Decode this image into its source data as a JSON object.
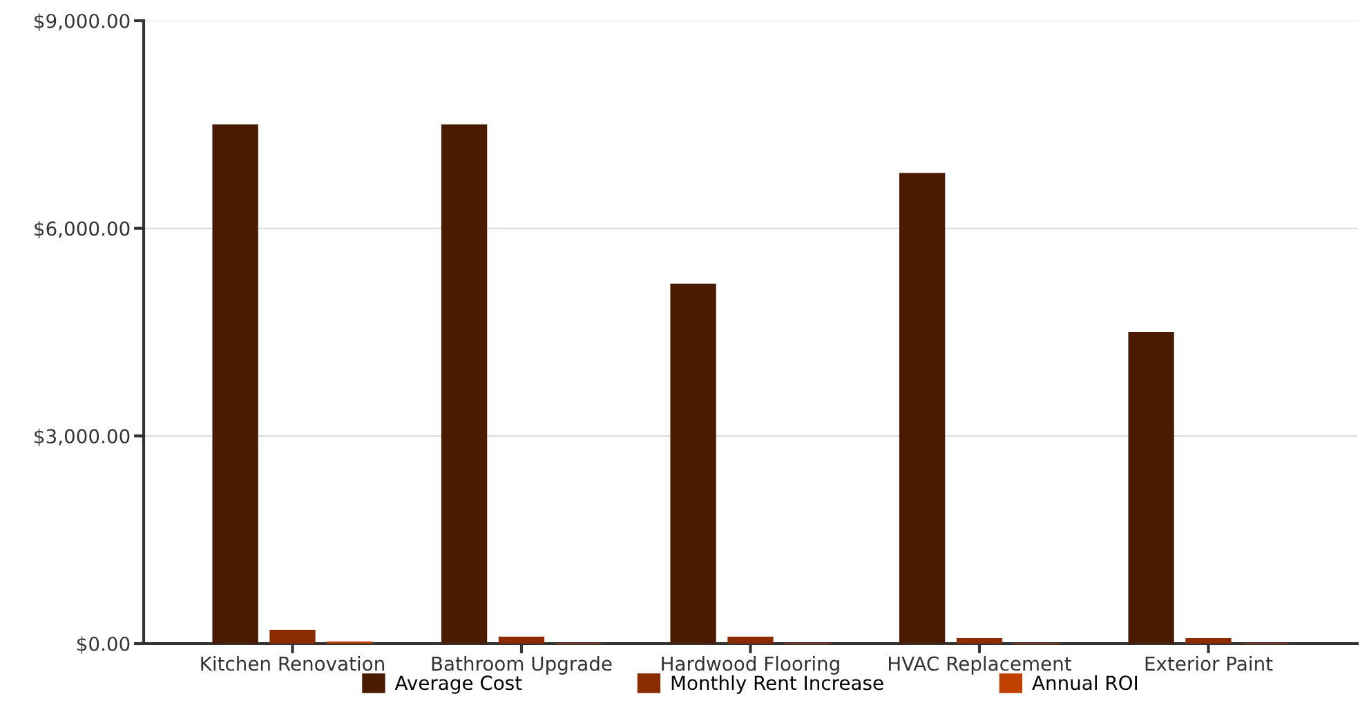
{
  "chart_data": {
    "type": "bar",
    "categories": [
      "Kitchen Renovation",
      "Bathroom Upgrade",
      "Hardwood Flooring",
      "HVAC Replacement",
      "Exterior Paint"
    ],
    "series": [
      {
        "name": "Average Cost",
        "color": "#4a1b00",
        "values": [
          7500,
          7500,
          5200,
          6800,
          4500
        ]
      },
      {
        "name": "Monthly Rent Increase",
        "color": "#8a2c00",
        "values": [
          200,
          100,
          100,
          80,
          80
        ]
      },
      {
        "name": "Annual ROI",
        "color": "#c04000",
        "values": [
          30,
          10,
          10,
          10,
          10
        ]
      }
    ],
    "ylim": [
      0,
      9000
    ],
    "yticks": [
      {
        "value": 0,
        "label": "$0.00"
      },
      {
        "value": 3000,
        "label": "$3,000.00"
      },
      {
        "value": 6000,
        "label": "$6,000.00"
      },
      {
        "value": 9000,
        "label": "$9,000.00"
      }
    ],
    "grid": "y",
    "legend": "bottom"
  }
}
